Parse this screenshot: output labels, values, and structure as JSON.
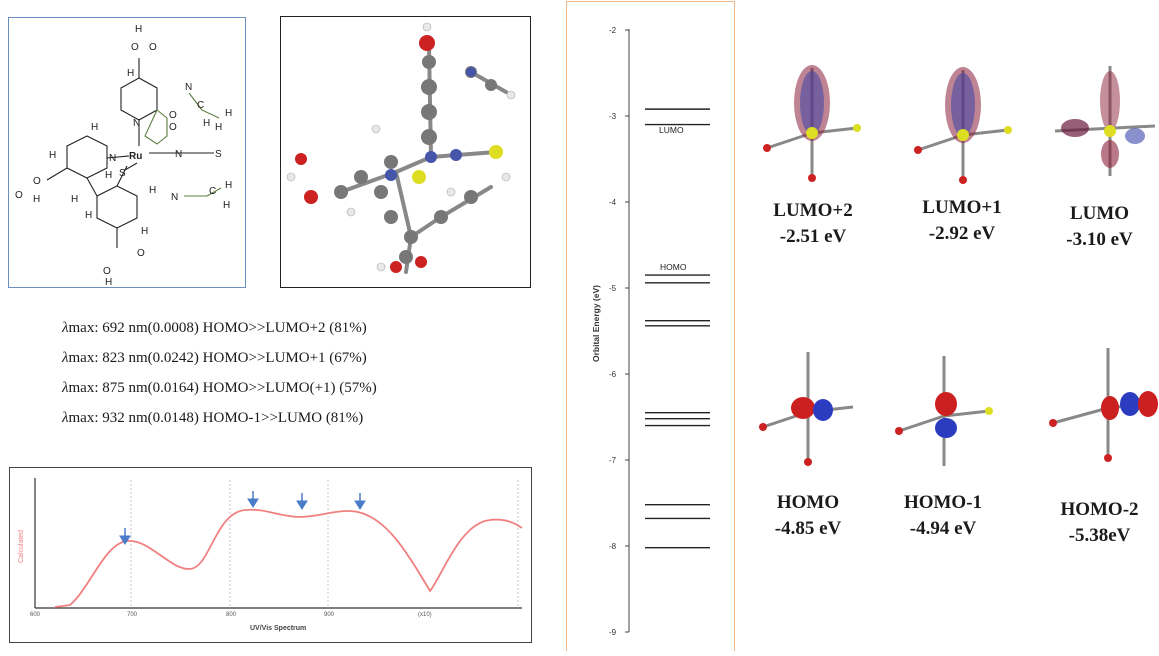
{
  "structure_panel": {
    "atoms": [
      "H",
      "O",
      "O",
      "H",
      "N",
      "C",
      "H",
      "H",
      "H",
      "N",
      "O",
      "O",
      "H",
      "H",
      "Ru",
      "N",
      "S",
      "N",
      "S",
      "H",
      "O",
      "O",
      "H",
      "H",
      "N",
      "C",
      "H",
      "H",
      "H",
      "H",
      "H",
      "O",
      "O",
      "H"
    ]
  },
  "transitions": [
    {
      "symbol": "λ",
      "text": "max: 692 nm(0.0008) HOMO>>LUMO+2 (81%)"
    },
    {
      "symbol": "λ",
      "text": "max: 823 nm(0.0242) HOMO>>LUMO+1 (67%)"
    },
    {
      "symbol": "λ",
      "text": "max: 875 nm(0.0164) HOMO>>LUMO(+1) (57%)"
    },
    {
      "symbol": "λ",
      "text": "max: 932 nm(0.0148) HOMO-1>>LUMO (81%)"
    }
  ],
  "spectrum": {
    "xlabel": "UV/Vis Spectrum",
    "ylabel": "Calculated",
    "x_ticks": [
      "600",
      "700",
      "800",
      "900",
      "(x10)"
    ],
    "colors": {
      "curve": "#f08080",
      "arrow": "#4a7cc9",
      "axis": "#333333"
    },
    "peak_markers": [
      690,
      825,
      875,
      932
    ]
  },
  "energy_diagram": {
    "ylabel": "Orbital Energy (eV)",
    "ymin": -9,
    "ymax": -2,
    "ticks": [
      "-2",
      "-3",
      "-4",
      "-5",
      "-6",
      "-7",
      "-8",
      "-9"
    ],
    "levels": [
      -2.92,
      -3.1,
      -4.85,
      -4.94,
      -5.38,
      -5.44,
      -6.45,
      -6.52,
      -6.6,
      -7.52,
      -7.68,
      -8.02
    ],
    "labels": {
      "lumo": "LUMO",
      "homo": "HOMO"
    },
    "colors": {
      "border": "#f2b98a",
      "line": "#222222"
    }
  },
  "orbitals": [
    {
      "name": "LUMO+2",
      "energy": "-2.51 eV"
    },
    {
      "name": "LUMO+1",
      "energy": "-2.92 eV"
    },
    {
      "name": "LUMO",
      "energy": "-3.10 eV"
    },
    {
      "name": "HOMO",
      "energy": "-4.85 eV"
    },
    {
      "name": "HOMO-1",
      "energy": "-4.94 eV"
    },
    {
      "name": "HOMO-2",
      "energy": "-5.38eV"
    }
  ]
}
